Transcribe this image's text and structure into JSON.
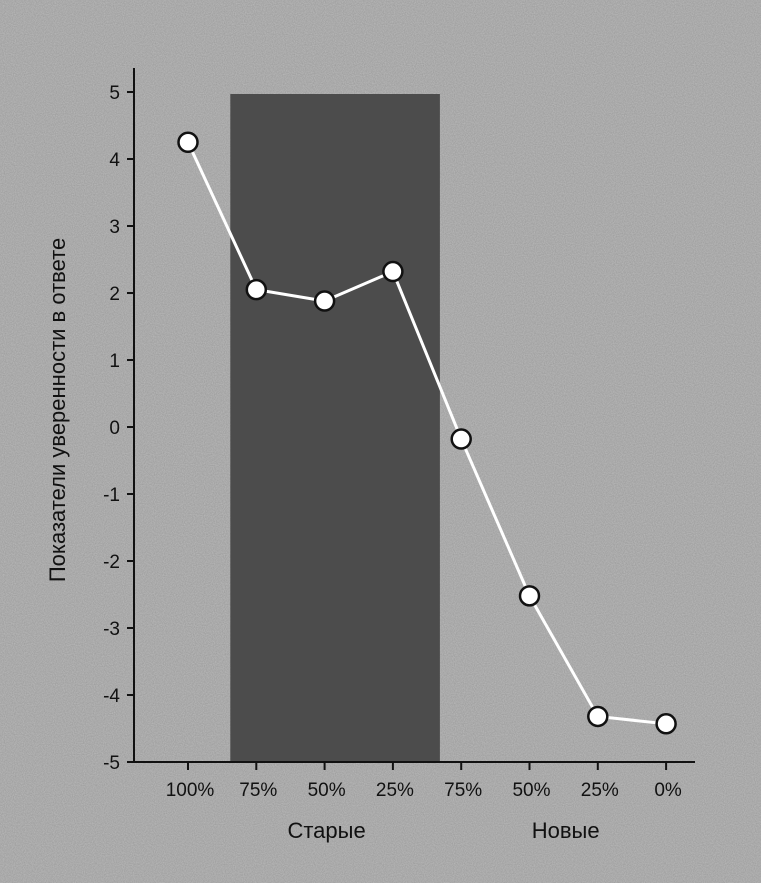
{
  "chart_data": {
    "type": "line",
    "ylabel": "Показатели уверенности в ответе",
    "ylim": [
      -5,
      5
    ],
    "yticks": [
      "5",
      "4",
      "3",
      "2",
      "1",
      "0",
      "-1",
      "-2",
      "-3",
      "-4",
      "-5"
    ],
    "categories": [
      "100%",
      "75%",
      "50%",
      "25%",
      "75%",
      "50%",
      "25%",
      "0%"
    ],
    "groups": [
      {
        "label": "Старые",
        "categories": [
          "75%",
          "50%",
          "25%"
        ]
      },
      {
        "label": "Новые",
        "categories": [
          "75%",
          "50%",
          "25%",
          "0%"
        ]
      }
    ],
    "series": [
      {
        "values": [
          4.25,
          2.05,
          1.88,
          2.32,
          -0.18,
          -2.52,
          -4.32,
          -4.43
        ]
      }
    ],
    "shaded_region": {
      "from_category_index": 1,
      "to_category_index": 3
    },
    "colors": {
      "background": "#b9b9b9",
      "shaded_band": "#4c4c4c",
      "line": "#ffffff",
      "marker_fill": "#ffffff",
      "marker_stroke": "#111111"
    }
  }
}
